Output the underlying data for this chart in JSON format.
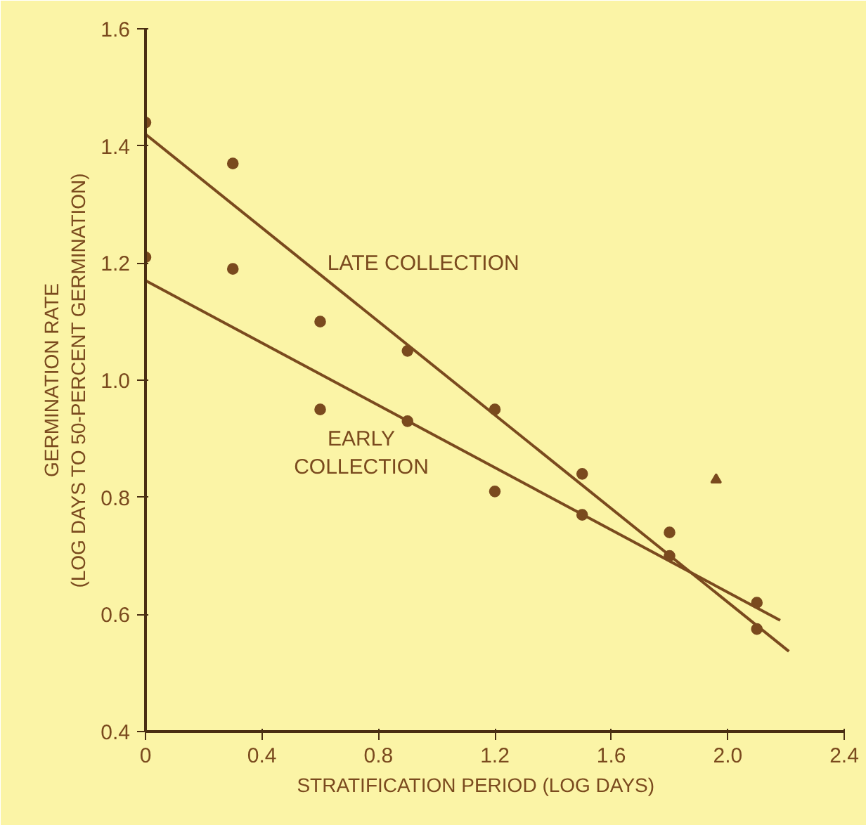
{
  "chart_data": {
    "type": "scatter",
    "xlabel": "STRATIFICATION PERIOD        (LOG DAYS)",
    "ylabel": "GERMINATION RATE\n(LOG DAYS TO 50-PERCENT GERMINATION)",
    "xlim": [
      0,
      2.4
    ],
    "ylim": [
      0.4,
      1.6
    ],
    "xticks": [
      {
        "value": 0,
        "label": "0"
      },
      0.4,
      0.8,
      1.2,
      1.6,
      {
        "value": 2.0,
        "label": "2.0"
      },
      2.4
    ],
    "yticks": [
      0.4,
      0.6,
      0.8,
      {
        "value": 1.0,
        "label": "1.0"
      },
      1.2,
      1.4,
      1.6
    ],
    "grid": false,
    "x": [
      0,
      0.3,
      0.6,
      0.9,
      1.2,
      1.5,
      1.8,
      2.1
    ],
    "series": [
      {
        "color": "#7a4a1e",
        "marker": "circle",
        "values": [
          1.44,
          1.37,
          1.1,
          1.05,
          0.95,
          0.84,
          0.74,
          0.575
        ]
      },
      {
        "color": "#7a4a1e",
        "marker": "circle",
        "values": [
          1.21,
          1.19,
          0.95,
          0.93,
          0.81,
          0.77,
          0.7,
          0.62
        ]
      },
      {
        "color": "#7a4a1e",
        "marker": "triangle",
        "x": [
          1.96
        ],
        "values": [
          0.83
        ]
      },
      {
        "type": "line",
        "name": "LATE COLLECTION",
        "color": "#7a4a1e",
        "x": [
          0,
          2.21
        ],
        "values": [
          1.42,
          0.537
        ]
      },
      {
        "type": "line",
        "name": "EARLY\nCOLLECTION",
        "color": "#7a4a1e",
        "x": [
          0,
          2.18
        ],
        "values": [
          1.17,
          0.59
        ]
      }
    ]
  }
}
